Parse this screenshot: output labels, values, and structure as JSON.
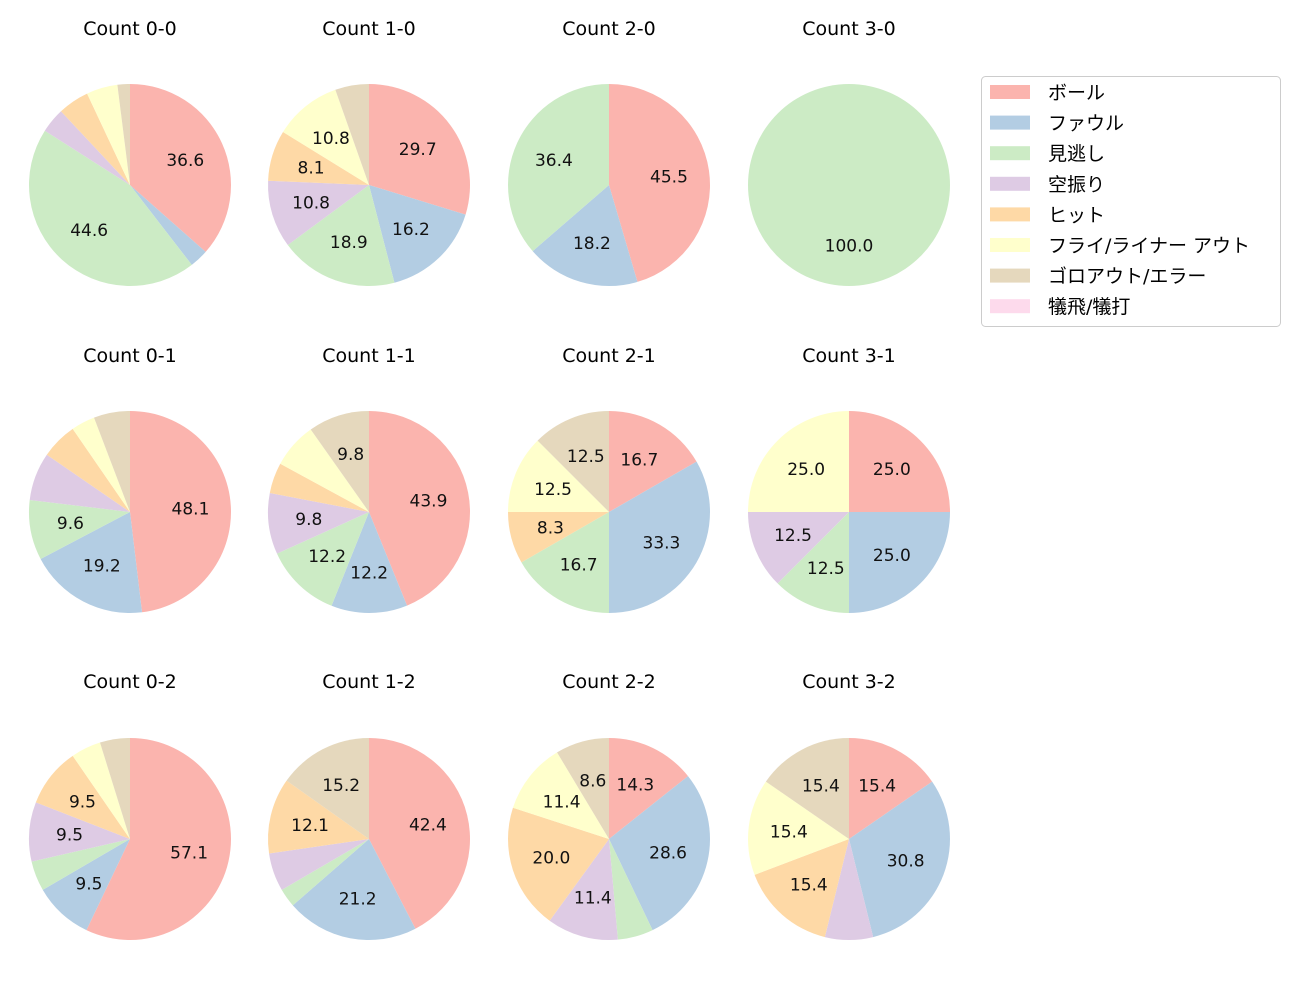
{
  "legend": {
    "placement": "right",
    "entries": [
      "ボール",
      "ファウル",
      "見逃し",
      "空振り",
      "ヒット",
      "フライ/ライナー アウト",
      "ゴロアウト/エラー",
      "犠飛/犠打"
    ],
    "colors": [
      "#fbb4ae",
      "#b3cde3",
      "#ccebc5",
      "#decbe4",
      "#fed9a6",
      "#ffffcc",
      "#e5d8bd",
      "#fddaec"
    ]
  },
  "chart_data": [
    {
      "type": "pie",
      "title": "Count 0-0",
      "values": [
        36.6,
        3.0,
        44.6,
        4.0,
        5.0,
        5.0,
        2.0,
        0
      ]
    },
    {
      "type": "pie",
      "title": "Count 1-0",
      "values": [
        29.7,
        16.2,
        18.9,
        10.8,
        8.1,
        10.8,
        5.4,
        0
      ]
    },
    {
      "type": "pie",
      "title": "Count 2-0",
      "values": [
        45.5,
        18.2,
        36.4,
        0,
        0,
        0,
        0,
        0
      ]
    },
    {
      "type": "pie",
      "title": "Count 3-0",
      "values": [
        0,
        0,
        100.0,
        0,
        0,
        0,
        0,
        0
      ]
    },
    {
      "type": "pie",
      "title": "Count 0-1",
      "values": [
        48.1,
        19.2,
        9.6,
        7.7,
        5.8,
        3.8,
        5.8,
        0
      ]
    },
    {
      "type": "pie",
      "title": "Count 1-1",
      "values": [
        43.9,
        12.2,
        12.2,
        9.8,
        4.9,
        7.3,
        9.8,
        0
      ]
    },
    {
      "type": "pie",
      "title": "Count 2-1",
      "values": [
        16.7,
        33.3,
        16.7,
        0,
        8.3,
        12.5,
        12.5,
        0
      ]
    },
    {
      "type": "pie",
      "title": "Count 3-1",
      "values": [
        25.0,
        25.0,
        12.5,
        12.5,
        0,
        25.0,
        0,
        0
      ]
    },
    {
      "type": "pie",
      "title": "Count 0-2",
      "values": [
        57.1,
        9.5,
        4.8,
        9.5,
        9.5,
        4.8,
        4.8,
        0
      ]
    },
    {
      "type": "pie",
      "title": "Count 1-2",
      "values": [
        42.4,
        21.2,
        3.0,
        6.1,
        12.1,
        0,
        15.2,
        0
      ]
    },
    {
      "type": "pie",
      "title": "Count 2-2",
      "values": [
        14.3,
        28.6,
        5.7,
        11.4,
        20.0,
        11.4,
        8.6,
        0
      ]
    },
    {
      "type": "pie",
      "title": "Count 3-2",
      "values": [
        15.4,
        30.8,
        0,
        7.7,
        15.4,
        15.4,
        15.4,
        0
      ]
    }
  ]
}
